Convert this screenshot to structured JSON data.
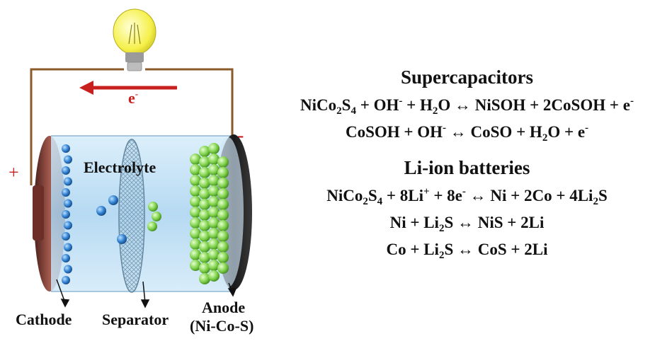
{
  "diagram": {
    "electron_label": "e",
    "electron_sup": "-",
    "plus_sign": "+",
    "minus_sign": "-",
    "electrolyte_label": "Electrolyte",
    "cathode_label": "Cathode",
    "separator_label": "Separator",
    "anode_label": "Anode",
    "anode_sub_label": "(Ni-Co-S)"
  },
  "supercapacitors": {
    "heading": "Supercapacitors",
    "eq1": [
      [
        "t",
        "NiCo"
      ],
      [
        "b",
        "2"
      ],
      [
        "t",
        "S"
      ],
      [
        "b",
        "4"
      ],
      [
        "t",
        " + OH"
      ],
      [
        "p",
        "-"
      ],
      [
        "t",
        " + H"
      ],
      [
        "b",
        "2"
      ],
      [
        "t",
        "O ↔ NiSOH + 2CoSOH + e"
      ],
      [
        "p",
        "-"
      ]
    ],
    "eq2": [
      [
        "t",
        "CoSOH + OH"
      ],
      [
        "p",
        "-"
      ],
      [
        "t",
        " ↔ CoSO + H"
      ],
      [
        "b",
        "2"
      ],
      [
        "t",
        "O + e"
      ],
      [
        "p",
        "-"
      ]
    ]
  },
  "li_ion": {
    "heading": "Li-ion batteries",
    "eq1": [
      [
        "t",
        "NiCo"
      ],
      [
        "b",
        "2"
      ],
      [
        "t",
        "S"
      ],
      [
        "b",
        "4"
      ],
      [
        "t",
        " + 8Li"
      ],
      [
        "p",
        "+"
      ],
      [
        "t",
        " + 8e"
      ],
      [
        "p",
        "-"
      ],
      [
        "t",
        " ↔ Ni + 2Co + 4Li"
      ],
      [
        "b",
        "2"
      ],
      [
        "t",
        "S"
      ]
    ],
    "eq2": [
      [
        "t",
        "Ni + Li"
      ],
      [
        "b",
        "2"
      ],
      [
        "t",
        "S ↔ NiS + 2Li"
      ]
    ],
    "eq3": [
      [
        "t",
        "Co + Li"
      ],
      [
        "b",
        "2"
      ],
      [
        "t",
        "S ↔ CoS + 2Li"
      ]
    ]
  },
  "colors": {
    "wire": "#8a5a2b",
    "arrow": "#c8201e",
    "electrolyte": "#bfe0f5",
    "cathode_cap": "#7a3b33",
    "anode_cap": "#2d2d2d",
    "cathode_ion": "#2f7fd1",
    "anode_ion": "#7fd14a",
    "bulb": "#f5f04a"
  }
}
